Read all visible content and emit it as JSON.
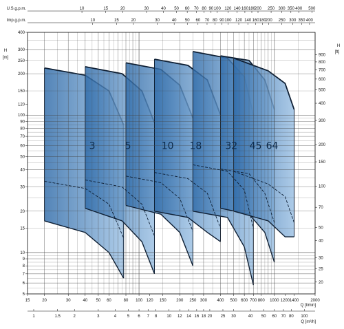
{
  "chart_data": {
    "type": "area",
    "title": "",
    "grid": true,
    "scale": "log-log",
    "top_axes": [
      {
        "label": "U.S.g.p.m.",
        "ticks": [
          10,
          15,
          20,
          30,
          40,
          50,
          60,
          70,
          80,
          90,
          100,
          120,
          140,
          160,
          180,
          200,
          250,
          300,
          350,
          400,
          500
        ]
      },
      {
        "label": "Imp.g.p.m.",
        "ticks": [
          10,
          15,
          20,
          30,
          40,
          50,
          60,
          70,
          80,
          90,
          100,
          120,
          140,
          160,
          180,
          200,
          250,
          300,
          350,
          400
        ]
      }
    ],
    "bottom_axes": [
      {
        "label": "Q [l/min]",
        "range": [
          15,
          2000
        ],
        "ticks": [
          15,
          20,
          30,
          40,
          50,
          60,
          80,
          100,
          120,
          150,
          200,
          250,
          300,
          400,
          500,
          600,
          700,
          800,
          1000,
          1200,
          1400,
          2000
        ]
      },
      {
        "label": "Q [m³/h]",
        "ticks": [
          "1",
          "1.5",
          "2",
          "3",
          "4",
          "5",
          "6",
          "7",
          "8",
          "10",
          "12",
          "14",
          "16",
          "18",
          "20",
          "25",
          "30",
          "40",
          "50",
          "60",
          "70",
          "80",
          "100"
        ]
      }
    ],
    "left_axis": {
      "label": "H",
      "unit": "[m]",
      "range": [
        5,
        400
      ],
      "ticks": [
        5,
        6,
        7,
        8,
        9,
        10,
        15,
        20,
        30,
        40,
        50,
        60,
        70,
        80,
        90,
        100,
        120,
        150,
        200,
        250,
        300,
        400
      ]
    },
    "right_axis": {
      "label": "H",
      "unit": "[ft]",
      "ticks": [
        15,
        20,
        25,
        30,
        40,
        50,
        70,
        100,
        150,
        200,
        300,
        400,
        500,
        600,
        700,
        800,
        900
      ]
    },
    "series": [
      {
        "name": "3",
        "q_range": [
          20,
          77
        ],
        "h_upper": [
          [
            20,
            220
          ],
          [
            40,
            195
          ],
          [
            60,
            150
          ],
          [
            77,
            85
          ]
        ],
        "h_lower": [
          [
            20,
            17
          ],
          [
            40,
            14
          ],
          [
            60,
            10
          ],
          [
            77,
            6.5
          ]
        ]
      },
      {
        "name": "5",
        "q_range": [
          40,
          130
        ],
        "h_upper": [
          [
            40,
            225
          ],
          [
            75,
            200
          ],
          [
            105,
            150
          ],
          [
            130,
            88
          ]
        ],
        "h_lower": [
          [
            40,
            21
          ],
          [
            75,
            17
          ],
          [
            105,
            12
          ],
          [
            130,
            7
          ]
        ]
      },
      {
        "name": "10",
        "q_range": [
          80,
          250
        ],
        "h_upper": [
          [
            80,
            240
          ],
          [
            145,
            215
          ],
          [
            200,
            165
          ],
          [
            250,
            95
          ]
        ],
        "h_lower": [
          [
            80,
            22
          ],
          [
            145,
            19
          ],
          [
            200,
            14
          ],
          [
            250,
            8
          ]
        ]
      },
      {
        "name": "18",
        "q_range": [
          130,
          400
        ],
        "h_upper": [
          [
            130,
            255
          ],
          [
            230,
            230
          ],
          [
            320,
            180
          ],
          [
            400,
            100
          ]
        ],
        "h_lower": [
          [
            130,
            20
          ],
          [
            230,
            18
          ],
          [
            320,
            14
          ],
          [
            400,
            12
          ]
        ]
      },
      {
        "name": "32",
        "q_range": [
          250,
          700
        ],
        "h_upper": [
          [
            250,
            290
          ],
          [
            450,
            260
          ],
          [
            600,
            190
          ],
          [
            700,
            100
          ]
        ],
        "h_lower": [
          [
            250,
            20
          ],
          [
            450,
            18
          ],
          [
            600,
            11
          ],
          [
            700,
            5.8
          ]
        ]
      },
      {
        "name": "45",
        "q_range": [
          400,
          1000
        ],
        "h_upper": [
          [
            400,
            270
          ],
          [
            650,
            250
          ],
          [
            850,
            180
          ],
          [
            1000,
            110
          ]
        ],
        "h_lower": [
          [
            400,
            21
          ],
          [
            650,
            19
          ],
          [
            850,
            14
          ],
          [
            1000,
            8.5
          ]
        ]
      },
      {
        "name": "64",
        "q_range": [
          500,
          1400
        ],
        "h_upper": [
          [
            500,
            260
          ],
          [
            900,
            210
          ],
          [
            1200,
            170
          ],
          [
            1400,
            110
          ]
        ],
        "h_lower": [
          [
            500,
            20
          ],
          [
            900,
            17
          ],
          [
            1200,
            13
          ],
          [
            1400,
            13
          ]
        ]
      }
    ]
  }
}
